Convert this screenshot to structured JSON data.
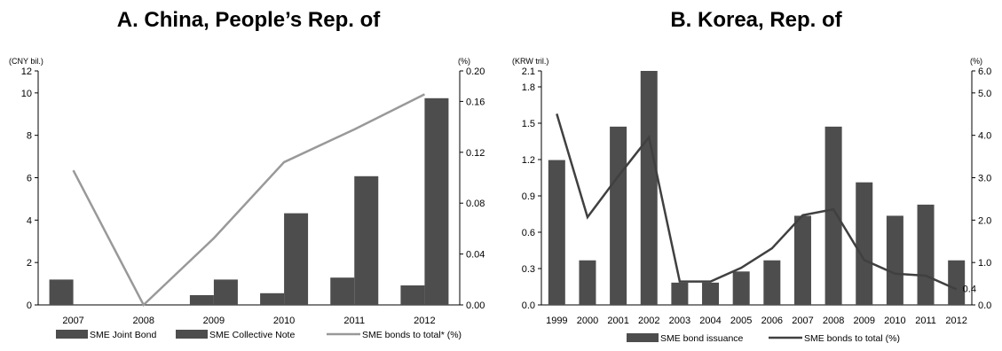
{
  "chart_data": [
    {
      "type": "bar",
      "title": "A.   China, People’s Rep. of",
      "y_unit_left": "(CNY bil.)",
      "y_unit_right": "(%)",
      "categories": [
        "2007",
        "2008",
        "2009",
        "2010",
        "2011",
        "2012"
      ],
      "ylim": [
        0,
        12
      ],
      "yticks": [
        "0",
        "2",
        "4",
        "6",
        "8",
        "10",
        "12"
      ],
      "y2lim": [
        0,
        0.2
      ],
      "y2ticks": [
        "0.00",
        "0.04",
        "0.08",
        "0.12",
        "0.16",
        "0.20"
      ],
      "grid": false,
      "legend_position": "bottom",
      "series": [
        {
          "name": "SME Joint Bond",
          "type": "bar",
          "axis": "left",
          "color": "#4d4d4d",
          "values": [
            1.3,
            0,
            0.5,
            0.6,
            1.4,
            1.0
          ]
        },
        {
          "name": "SME Collective Note",
          "type": "bar",
          "axis": "left",
          "color": "#4d4d4d",
          "values": [
            0,
            0,
            1.3,
            4.7,
            6.6,
            10.6
          ]
        },
        {
          "name": "SME bonds to total* (%)",
          "type": "line",
          "axis": "right",
          "color": "#999999",
          "values": [
            0.115,
            0.0,
            0.057,
            0.122,
            0.15,
            0.18
          ]
        }
      ]
    },
    {
      "type": "bar",
      "title": "B.   Korea, Rep. of",
      "y_unit_left": "(KRW tril.)",
      "y_unit_right": "(%)",
      "categories": [
        "1999",
        "2000",
        "2001",
        "2002",
        "2003",
        "2004",
        "2005",
        "2006",
        "2007",
        "2008",
        "2009",
        "2010",
        "2011",
        "2012"
      ],
      "ylim": [
        0,
        2.1
      ],
      "yticks": [
        "0.0",
        "0.3",
        "0.6",
        "0.9",
        "1.2",
        "1.5",
        "1.8",
        "2.1"
      ],
      "y2lim": [
        0,
        6
      ],
      "y2ticks": [
        "0.0",
        "1.0",
        "2.0",
        "3.0",
        "4.0",
        "5.0",
        "6.0"
      ],
      "grid": false,
      "legend_position": "bottom",
      "annotations": [
        {
          "category": "2012",
          "text": "0.4"
        }
      ],
      "series": [
        {
          "name": "SME bond issuance",
          "type": "bar",
          "axis": "left",
          "color": "#4d4d4d",
          "values": [
            1.3,
            0.4,
            1.6,
            2.1,
            0.2,
            0.2,
            0.3,
            0.4,
            0.8,
            1.6,
            1.1,
            0.8,
            0.9,
            0.4
          ]
        },
        {
          "name": "SME bonds to total (%)",
          "type": "line",
          "axis": "right",
          "color": "#404040",
          "values": [
            4.9,
            2.25,
            3.3,
            4.3,
            0.6,
            0.6,
            0.95,
            1.45,
            2.3,
            2.45,
            1.15,
            0.8,
            0.75,
            0.4
          ]
        }
      ]
    }
  ]
}
